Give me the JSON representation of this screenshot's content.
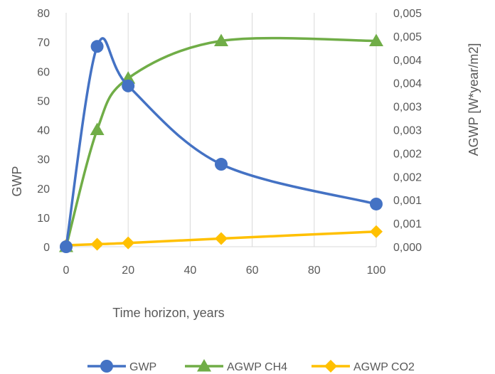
{
  "chart_data": {
    "type": "line",
    "xlabel": "Time horizon, years",
    "ylabel": "GWP",
    "y2label": "AGWP [W*year/m2]",
    "x_ticks": [
      0,
      20,
      40,
      60,
      80,
      100
    ],
    "y_ticks": [
      0,
      10,
      20,
      30,
      40,
      50,
      60,
      70,
      80
    ],
    "y2_ticks": [
      "0,000",
      "0,001",
      "0,001",
      "0,002",
      "0,002",
      "0,003",
      "0,003",
      "0,004",
      "0,004",
      "0,005",
      "0,005"
    ],
    "xlim": [
      0,
      100
    ],
    "ylim": [
      0,
      80
    ],
    "y2lim": [
      0,
      0.005
    ],
    "grid": "vertical",
    "legend_position": "bottom",
    "series": [
      {
        "name": "GWP",
        "axis": "left",
        "marker": "circle",
        "color": "#4472C4",
        "x": [
          0,
          10,
          20,
          50,
          100
        ],
        "y": [
          0,
          68.5,
          55,
          28.2,
          14.6
        ]
      },
      {
        "name": "AGWP CH4",
        "axis": "right",
        "marker": "triangle",
        "color": "#70AD47",
        "x": [
          0,
          10,
          20,
          50,
          100
        ],
        "y": [
          0,
          0.0025,
          0.0036,
          0.0044,
          0.0044
        ]
      },
      {
        "name": "AGWP CO2",
        "axis": "right",
        "marker": "diamond",
        "color": "#FFC000",
        "x": [
          0,
          10,
          20,
          50,
          100
        ],
        "y": [
          3e-05,
          5.4e-05,
          8.1e-05,
          0.000175,
          0.000323
        ]
      }
    ]
  }
}
